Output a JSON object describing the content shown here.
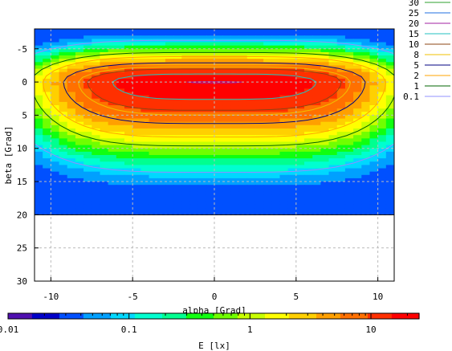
{
  "chart_data": {
    "type": "heatmap",
    "title": "",
    "xlabel": "alpha [Grad]",
    "ylabel": "beta [Grad]",
    "xlim": [
      -11,
      11
    ],
    "ylim": [
      -8,
      30
    ],
    "x_ticks": [
      -10,
      -5,
      0,
      5,
      10
    ],
    "y_ticks": [
      -5,
      0,
      5,
      10,
      15,
      20,
      25,
      30
    ],
    "grid": true,
    "data_y_range": [
      -8,
      20
    ],
    "field": {
      "quantity": "E",
      "peak_value": 20,
      "peak_at": {
        "alpha": 0,
        "beta": 0
      },
      "edge_value": 0.03
    },
    "contour_legend": {
      "placement": "right",
      "entries": [
        {
          "level": "30",
          "color": "#2ca02c"
        },
        {
          "level": "25",
          "color": "#1f6fe0"
        },
        {
          "level": "20",
          "color": "#a020a0"
        },
        {
          "level": "15",
          "color": "#20c0c0"
        },
        {
          "level": "10",
          "color": "#8b4513"
        },
        {
          "level": "8",
          "color": "#f0c000"
        },
        {
          "level": "5",
          "color": "#000080"
        },
        {
          "level": "2",
          "color": "#ffa500"
        },
        {
          "level": "1",
          "color": "#006400"
        },
        {
          "level": "0.1",
          "color": "#9090ff"
        }
      ]
    },
    "colorbar": {
      "label": "E [lx]",
      "scale": "log",
      "range": [
        0.01,
        25
      ],
      "ticks": [
        "0.01",
        "0.1",
        "1",
        "10"
      ],
      "colors": [
        "#5010b0",
        "#0000c8",
        "#0050ff",
        "#00a0ff",
        "#00d8ff",
        "#00ffd0",
        "#00ff90",
        "#10ff10",
        "#70ff00",
        "#c8ff00",
        "#ffff00",
        "#ffd000",
        "#ffa000",
        "#ff7000",
        "#ff3000",
        "#ff0000"
      ]
    }
  }
}
